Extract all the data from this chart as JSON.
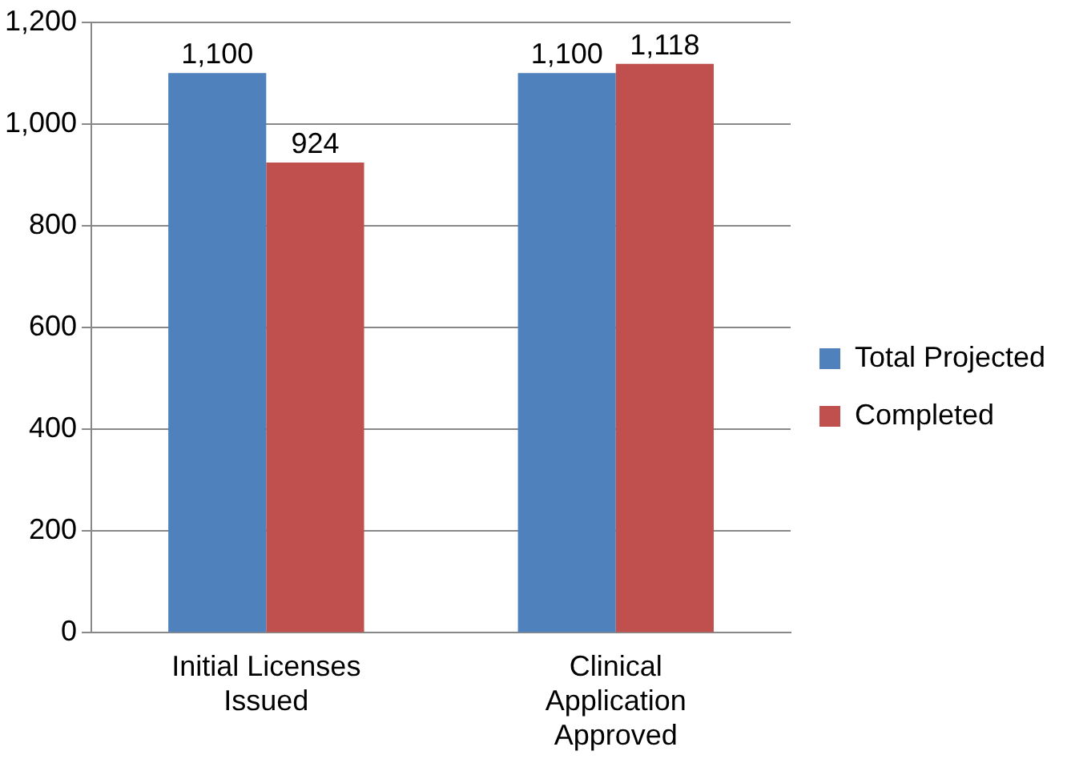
{
  "chart_data": {
    "type": "bar",
    "categories": [
      "Initial Licenses Issued",
      "Clinical Application Approved"
    ],
    "series": [
      {
        "name": "Total Projected",
        "color": "#4f81bd",
        "values": [
          1100,
          1100
        ],
        "value_labels": [
          "1,100",
          "1,100"
        ]
      },
      {
        "name": "Completed",
        "color": "#c0504d",
        "values": [
          924,
          1118
        ],
        "value_labels": [
          "924",
          "1,118"
        ]
      }
    ],
    "ylim": [
      0,
      1200
    ],
    "yticks": [
      0,
      200,
      400,
      600,
      800,
      {
        "value": 1000,
        "label": "1,000"
      },
      {
        "value": 1200,
        "label": "1,200"
      }
    ],
    "grid": "y",
    "legend": "right"
  }
}
